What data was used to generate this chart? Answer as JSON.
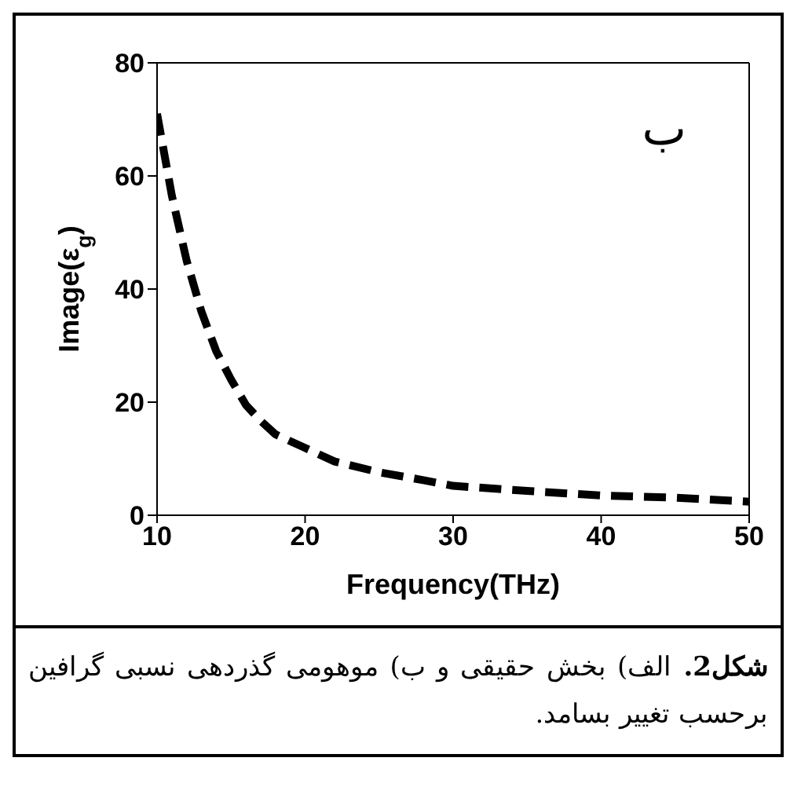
{
  "chart_data": {
    "type": "line",
    "xlabel": "Frequency(THz)",
    "ylabel": "Image(ε$_{g}$)",
    "x": [
      10,
      11,
      12,
      13,
      14,
      15,
      16,
      17,
      18,
      20,
      22,
      25,
      28,
      30,
      35,
      40,
      45,
      50
    ],
    "series": [
      {
        "color": "#000000",
        "values": [
          71,
          56.5,
          45,
          36,
          29,
          24,
          19.5,
          16.7,
          14.3,
          11.9,
          9.5,
          7.6,
          6.2,
          5.2,
          4.3,
          3.5,
          3.1,
          2.4
        ]
      }
    ],
    "xlim": [
      10,
      50
    ],
    "xticks": [
      10,
      20,
      30,
      40,
      50
    ],
    "ylim": [
      0,
      80
    ],
    "yticks": [
      0,
      20,
      40,
      60,
      80
    ],
    "grid": false,
    "legend": false,
    "marker": "none",
    "line_style": "dashed",
    "annotations": [
      "ب",
      "شکل2.",
      "الف) بخش حقیقی و ب) موهومی گذردهی نسبی گرافین برحسب تغییر بسامد."
    ]
  }
}
